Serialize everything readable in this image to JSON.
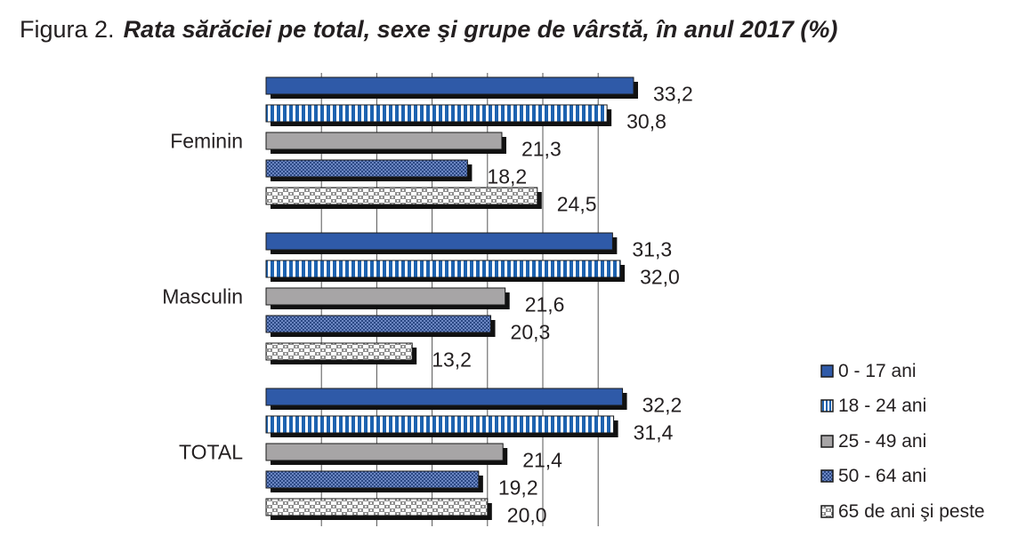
{
  "title": {
    "prefix": "Figura 2.",
    "main": "Rata sărăciei pe total, sexe şi grupe de vârstă, în anul 2017 (%)"
  },
  "chart_data": {
    "type": "bar",
    "orientation": "horizontal",
    "categories": [
      "Feminin",
      "Masculin",
      "TOTAL"
    ],
    "series": [
      {
        "name": "0 - 17 ani",
        "values": [
          33.2,
          31.3,
          32.2
        ],
        "labels": [
          "33,2",
          "31,3",
          "32,2"
        ],
        "color": "#2f5aa8",
        "pattern": "solid"
      },
      {
        "name": "18 - 24 ani",
        "values": [
          30.8,
          32.0,
          31.4
        ],
        "labels": [
          "30,8",
          "32,0",
          "31,4"
        ],
        "color": "#1e63b0",
        "pattern": "vertical-stripes"
      },
      {
        "name": "25 - 49 ani",
        "values": [
          21.3,
          21.6,
          21.4
        ],
        "labels": [
          "21,3",
          "21,6",
          "21,4"
        ],
        "color": "#a7a5a6",
        "pattern": "solid"
      },
      {
        "name": "50 - 64 ani",
        "values": [
          18.2,
          20.3,
          19.2
        ],
        "labels": [
          "18,2",
          "20,3",
          "19,2"
        ],
        "color": "#3a5894",
        "pattern": "crosshatch"
      },
      {
        "name": "65 de ani şi peste",
        "values": [
          24.5,
          13.2,
          20.0
        ],
        "labels": [
          "24,5",
          "13,2",
          "20,0"
        ],
        "color": "#c9c9c9",
        "pattern": "checker"
      }
    ],
    "xlim": [
      0,
      35
    ],
    "grid": true,
    "legend_position": "bottom-right"
  }
}
